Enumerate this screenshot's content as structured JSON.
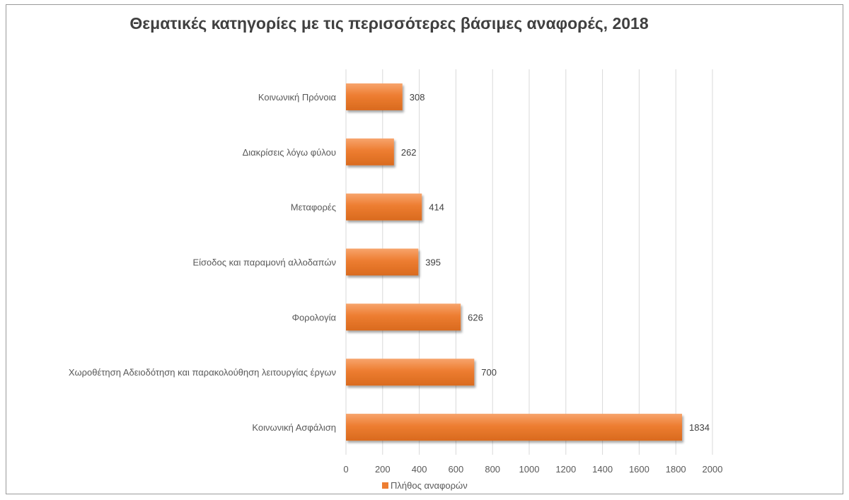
{
  "chart_data": {
    "type": "bar",
    "orientation": "horizontal",
    "title": "Θεματικές κατηγορίες με τις περισσότερες βάσιμες αναφορές, 2018",
    "categories": [
      "Κοινωνική Πρόνοια",
      "Διακρίσεις λόγω φύλου",
      "Μεταφορές",
      "Είσοδος και παραμονή αλλοδαπών",
      "Φορολογία",
      "Χωροθέτηση Αδειοδότηση και παρακολούθηση λειτουργίας έργων",
      "Κοινωνική Ασφάλιση"
    ],
    "series": [
      {
        "name": "Πλήθος αναφορών",
        "values": [
          308,
          262,
          414,
          395,
          626,
          700,
          1834
        ],
        "color": "#ED7D31"
      }
    ],
    "xlim": [
      0,
      2000
    ],
    "xticks": [
      0,
      200,
      400,
      600,
      800,
      1000,
      1200,
      1400,
      1600,
      1800,
      2000
    ],
    "grid": true,
    "legend_position": "bottom",
    "data_labels": true
  },
  "legend": {
    "label": "Πλήθος αναφορών"
  }
}
